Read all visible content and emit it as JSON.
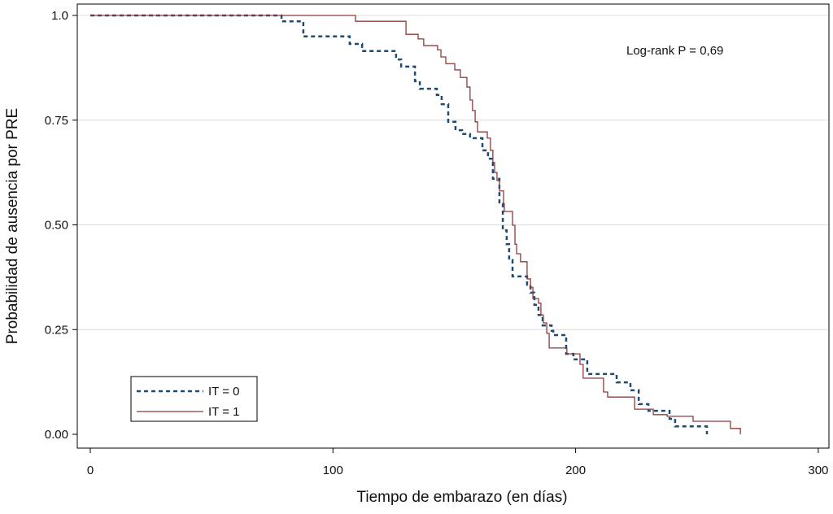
{
  "chart_data": {
    "type": "line",
    "subtype": "kaplan-meier step",
    "title": "",
    "xlabel": "Tiempo de embarazo (en días)",
    "ylabel": "Probabilidad de ausencia por PRE",
    "xlim": [
      -3,
      305
    ],
    "ylim": [
      -0.03,
      1.02
    ],
    "xticks": [
      0,
      100,
      200,
      300
    ],
    "xtick_labels": [
      "0",
      "100",
      "200",
      "300"
    ],
    "yticks": [
      0,
      0.25,
      0.5,
      0.75,
      1.0
    ],
    "ytick_labels": [
      "0.00",
      "0.25",
      "0.50",
      "0.75",
      "1.0"
    ],
    "grid": "horizontal",
    "annotation": "Log-rank P = 0,69",
    "legend_placement": "bottom-left",
    "series": [
      {
        "name": "IT = 0",
        "color": "#1f4a72",
        "style": "dotted",
        "points": [
          [
            0,
            1
          ],
          [
            78.8,
            0.986
          ],
          [
            87.8,
            0.95
          ],
          [
            106.9,
            0.932
          ],
          [
            112,
            0.915
          ],
          [
            126,
            0.895
          ],
          [
            128.1,
            0.878
          ],
          [
            133.8,
            0.843
          ],
          [
            135.8,
            0.825
          ],
          [
            142.8,
            0.81
          ],
          [
            144.8,
            0.788
          ],
          [
            147.5,
            0.746
          ],
          [
            150.5,
            0.726
          ],
          [
            153.2,
            0.717
          ],
          [
            156.5,
            0.707
          ],
          [
            161.6,
            0.678
          ],
          [
            163.9,
            0.658
          ],
          [
            165.9,
            0.61
          ],
          [
            168.6,
            0.551
          ],
          [
            170,
            0.487
          ],
          [
            171.6,
            0.454
          ],
          [
            172.6,
            0.416
          ],
          [
            174,
            0.377
          ],
          [
            180,
            0.357
          ],
          [
            181.4,
            0.338
          ],
          [
            183,
            0.309
          ],
          [
            184.7,
            0.285
          ],
          [
            186.4,
            0.26
          ],
          [
            190.1,
            0.247
          ],
          [
            190.8,
            0.237
          ],
          [
            196.1,
            0.192
          ],
          [
            199.1,
            0.179
          ],
          [
            204.8,
            0.144
          ],
          [
            216.9,
            0.124
          ],
          [
            222.6,
            0.105
          ],
          [
            226,
            0.072
          ],
          [
            230,
            0.056
          ],
          [
            238.7,
            0.037
          ],
          [
            241,
            0.019
          ],
          [
            254.1,
            0.0
          ]
        ]
      },
      {
        "name": "IT = 1",
        "color": "#8e3b3b",
        "style": "solid",
        "points": [
          [
            0,
            1
          ],
          [
            109.3,
            0.986
          ],
          [
            130.1,
            0.955
          ],
          [
            135.1,
            0.944
          ],
          [
            137.4,
            0.928
          ],
          [
            143.1,
            0.918
          ],
          [
            144.5,
            0.901
          ],
          [
            146.5,
            0.885
          ],
          [
            150.2,
            0.87
          ],
          [
            152.5,
            0.852
          ],
          [
            155.2,
            0.829
          ],
          [
            156.5,
            0.798
          ],
          [
            157.5,
            0.773
          ],
          [
            158.6,
            0.746
          ],
          [
            159.6,
            0.722
          ],
          [
            163.6,
            0.707
          ],
          [
            164.9,
            0.678
          ],
          [
            165.9,
            0.649
          ],
          [
            166.6,
            0.625
          ],
          [
            167.6,
            0.606
          ],
          [
            168.6,
            0.581
          ],
          [
            170.3,
            0.551
          ],
          [
            170.6,
            0.532
          ],
          [
            174,
            0.499
          ],
          [
            175,
            0.454
          ],
          [
            175.7,
            0.431
          ],
          [
            177.3,
            0.412
          ],
          [
            180,
            0.371
          ],
          [
            181.4,
            0.351
          ],
          [
            182.4,
            0.324
          ],
          [
            184.7,
            0.313
          ],
          [
            185.7,
            0.285
          ],
          [
            186.7,
            0.266
          ],
          [
            188.1,
            0.241
          ],
          [
            189.1,
            0.206
          ],
          [
            196.4,
            0.192
          ],
          [
            201.8,
            0.167
          ],
          [
            203.1,
            0.134
          ],
          [
            211.5,
            0.101
          ],
          [
            213.2,
            0.089
          ],
          [
            224.3,
            0.06
          ],
          [
            232,
            0.047
          ],
          [
            237.7,
            0.043
          ],
          [
            248.4,
            0.031
          ],
          [
            263.8,
            0.014
          ],
          [
            267.9,
            0.0
          ]
        ]
      }
    ]
  }
}
